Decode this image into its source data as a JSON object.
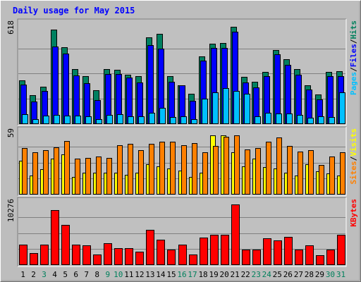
{
  "chart_data": {
    "type": "bar",
    "title": "Daily usage for May 2015",
    "days": [
      "1",
      "2",
      "3",
      "4",
      "5",
      "6",
      "7",
      "8",
      "9",
      "10",
      "11",
      "12",
      "13",
      "14",
      "15",
      "16",
      "17",
      "18",
      "19",
      "20",
      "21",
      "22",
      "23",
      "24",
      "25",
      "26",
      "27",
      "28",
      "29",
      "30",
      "31"
    ],
    "weekend_days": [
      "3",
      "9",
      "10",
      "16",
      "17",
      "23",
      "24",
      "30",
      "31"
    ],
    "panels": [
      {
        "id": "hits",
        "max_label": "618",
        "ymax": 618,
        "legend": [
          {
            "text": "Pages",
            "color": "#00c0ff"
          },
          {
            "text": "/",
            "color": "#000000"
          },
          {
            "text": "Files",
            "color": "#0000ff"
          },
          {
            "text": "/",
            "color": "#000000"
          },
          {
            "text": "Hits",
            "color": "#00805c"
          }
        ],
        "series": [
          {
            "name": "Hits",
            "color": "#008060",
            "values": [
              265,
              175,
              225,
              580,
              470,
              335,
              292,
              206,
              337,
              330,
              302,
              293,
              530,
              553,
              292,
              236,
              182,
              414,
              493,
              496,
              596,
              289,
              256,
              318,
              451,
              395,
              334,
              233,
              178,
              319,
              324
            ]
          },
          {
            "name": "Files",
            "color": "#0000ff",
            "values": [
              240,
              133,
              200,
              474,
              429,
              295,
              247,
              143,
              304,
              306,
              282,
              253,
              483,
              462,
              257,
              233,
              138,
              386,
              466,
              466,
              567,
              253,
              220,
              292,
              426,
              362,
              301,
              208,
              149,
              293,
              293
            ]
          },
          {
            "name": "Pages",
            "color": "#00c0ff",
            "values": [
              58,
              25,
              48,
              51,
              49,
              46,
              42,
              28,
              51,
              56,
              44,
              42,
              64,
              96,
              40,
              45,
              24,
              152,
              191,
              218,
              200,
              182,
              44,
              64,
              60,
              60,
              52,
              36,
              44,
              38,
              190
            ]
          }
        ]
      },
      {
        "id": "visits",
        "max_label": "59",
        "ymax": 59,
        "legend": [
          {
            "text": "Sites",
            "color": "#ff8000"
          },
          {
            "text": "/",
            "color": "#000000"
          },
          {
            "text": "Visits",
            "color": "#ffff00"
          }
        ],
        "series": [
          {
            "name": "Visits",
            "color": "#ffff00",
            "values": [
              31,
              17,
              23,
              33,
              37,
              16,
              20,
              20,
              20,
              20,
              18,
              20,
              28,
              26,
              24,
              22,
              16,
              20,
              55,
              55,
              39,
              26,
              33,
              25,
              24,
              20,
              17,
              28,
              21,
              19,
              17
            ]
          },
          {
            "name": "Sites",
            "color": "#ff8000",
            "values": [
              43,
              39,
              41,
              44,
              50,
              33,
              34,
              35,
              34,
              46,
              47,
              41,
              47,
              49,
              49,
              46,
              48,
              39,
              45,
              54,
              55,
              42,
              43,
              49,
              53,
              45,
              40,
              41,
              27,
              35,
              39
            ]
          }
        ]
      },
      {
        "id": "kbytes",
        "max_label": "10276",
        "ymax": 10276,
        "legend": [
          {
            "text": "KBytes",
            "color": "#ff0000"
          }
        ],
        "series": [
          {
            "name": "KBytes",
            "color": "#ff0000",
            "values": [
              3200,
              1850,
              3200,
              8900,
              6450,
              3200,
              3100,
              1600,
              3500,
              2650,
              2650,
              2050,
              5650,
              4000,
              2400,
              3250,
              1600,
              4400,
              4900,
              4850,
              9850,
              2400,
              2400,
              4250,
              3950,
              4550,
              2400,
              3150,
              1500,
              2400,
              4800
            ]
          }
        ]
      }
    ],
    "colors": {
      "background": "#bdbdbd",
      "plot_background": "#c0c0c0",
      "title": "#0000ff",
      "weekday_label": "#000000",
      "weekend_label": "#00805c",
      "grid": "#808080"
    }
  }
}
